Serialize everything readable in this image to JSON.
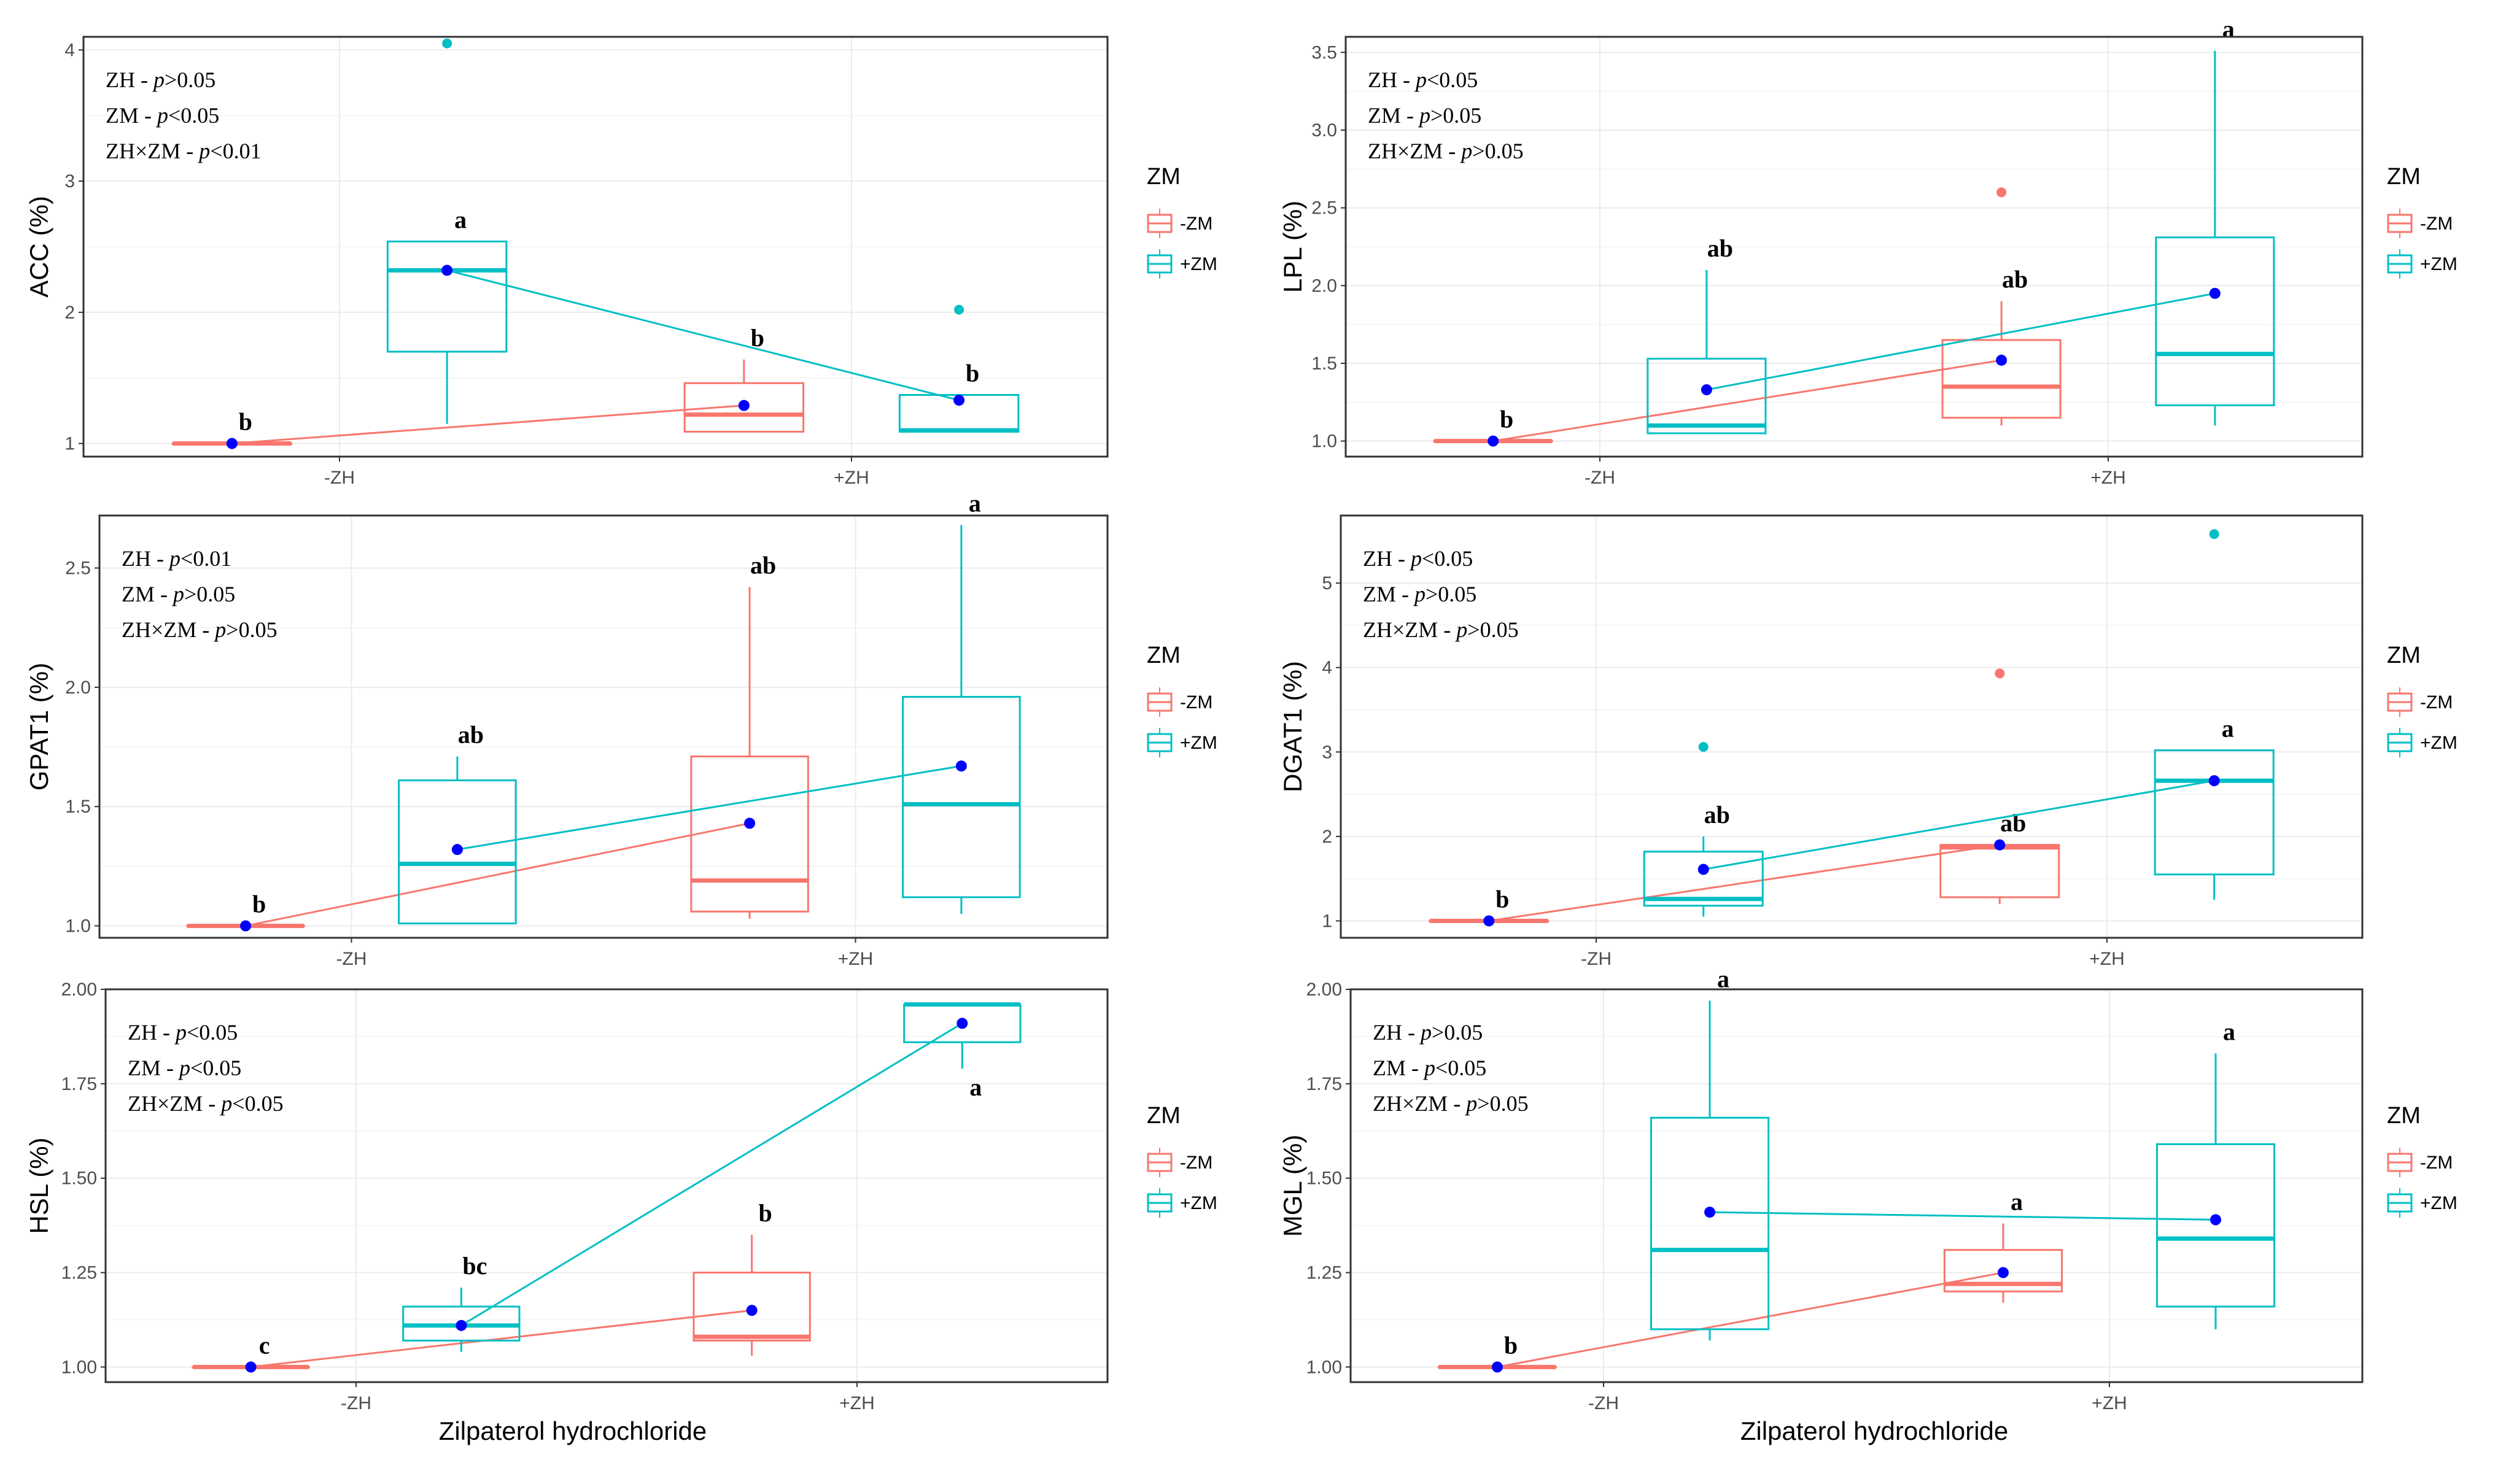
{
  "colors": {
    "minus_zm": "#F8766D",
    "plus_zm": "#00BFC4",
    "mean_point": "#0000FF",
    "panel_border": "#333333"
  },
  "x_axis_title": "Zilpaterol hydrochloride",
  "legend": {
    "title": "ZM",
    "items": [
      "-ZM",
      "+ZM"
    ]
  },
  "chart_data": [
    {
      "type": "box",
      "ylabel": "ACC (%)",
      "categories": [
        "-ZH",
        "+ZH"
      ],
      "ylim": [
        0.9,
        4.1
      ],
      "yticks": [
        1,
        2,
        3,
        4
      ],
      "ytick_labels": [
        "1",
        "2",
        "3",
        "4"
      ],
      "stats_text": [
        {
          "prefix": "ZH - ",
          "p": "p",
          "suffix": ">0.05"
        },
        {
          "prefix": "ZM - ",
          "p": "p",
          "suffix": "<0.05"
        },
        {
          "prefix": "ZH×ZM - ",
          "p": "p",
          "suffix": "<0.01"
        }
      ],
      "series": [
        {
          "name": "-ZM",
          "boxes": [
            {
              "category": "-ZH",
              "q1": 1.0,
              "median": 1.0,
              "q3": 1.0,
              "whisker_low": 1.0,
              "whisker_high": 1.0,
              "mean": 1.0,
              "outliers": [],
              "letter": "b"
            },
            {
              "category": "+ZH",
              "q1": 1.09,
              "median": 1.22,
              "q3": 1.46,
              "whisker_low": 1.09,
              "whisker_high": 1.64,
              "mean": 1.29,
              "outliers": [],
              "letter": "b"
            }
          ]
        },
        {
          "name": "+ZM",
          "boxes": [
            {
              "category": "-ZH",
              "q1": 1.7,
              "median": 2.32,
              "q3": 2.54,
              "whisker_low": 1.15,
              "whisker_high": 2.54,
              "mean": 2.32,
              "outliers": [
                4.05
              ],
              "letter": "a"
            },
            {
              "category": "+ZH",
              "q1": 1.09,
              "median": 1.1,
              "q3": 1.37,
              "whisker_low": 1.09,
              "whisker_high": 1.37,
              "mean": 1.33,
              "outliers": [
                2.02
              ],
              "letter": "b"
            }
          ]
        }
      ]
    },
    {
      "type": "box",
      "ylabel": "LPL (%)",
      "categories": [
        "-ZH",
        "+ZH"
      ],
      "ylim": [
        0.9,
        3.6
      ],
      "yticks": [
        1.0,
        1.5,
        2.0,
        2.5,
        3.0,
        3.5
      ],
      "ytick_labels": [
        "1.0",
        "1.5",
        "2.0",
        "2.5",
        "3.0",
        "3.5"
      ],
      "stats_text": [
        {
          "prefix": "ZH - ",
          "p": "p",
          "suffix": "<0.05"
        },
        {
          "prefix": "ZM - ",
          "p": "p",
          "suffix": ">0.05"
        },
        {
          "prefix": "ZH×ZM - ",
          "p": "p",
          "suffix": ">0.05"
        }
      ],
      "series": [
        {
          "name": "-ZM",
          "boxes": [
            {
              "category": "-ZH",
              "q1": 1.0,
              "median": 1.0,
              "q3": 1.0,
              "whisker_low": 1.0,
              "whisker_high": 1.0,
              "mean": 1.0,
              "outliers": [],
              "letter": "b"
            },
            {
              "category": "+ZH",
              "q1": 1.15,
              "median": 1.35,
              "q3": 1.65,
              "whisker_low": 1.1,
              "whisker_high": 1.9,
              "mean": 1.52,
              "outliers": [
                2.6
              ],
              "letter": "ab"
            }
          ]
        },
        {
          "name": "+ZM",
          "boxes": [
            {
              "category": "-ZH",
              "q1": 1.05,
              "median": 1.1,
              "q3": 1.53,
              "whisker_low": 1.05,
              "whisker_high": 2.1,
              "mean": 1.33,
              "outliers": [],
              "letter": "ab"
            },
            {
              "category": "+ZH",
              "q1": 1.23,
              "median": 1.56,
              "q3": 2.31,
              "whisker_low": 1.1,
              "whisker_high": 3.51,
              "mean": 1.95,
              "outliers": [],
              "letter": "a"
            }
          ]
        }
      ]
    },
    {
      "type": "box",
      "ylabel": "GPAT1 (%)",
      "categories": [
        "-ZH",
        "+ZH"
      ],
      "ylim": [
        0.95,
        2.72
      ],
      "yticks": [
        1.0,
        1.5,
        2.0,
        2.5
      ],
      "ytick_labels": [
        "1.0",
        "1.5",
        "2.0",
        "2.5"
      ],
      "stats_text": [
        {
          "prefix": "ZH - ",
          "p": "p",
          "suffix": "<0.01"
        },
        {
          "prefix": "ZM - ",
          "p": "p",
          "suffix": ">0.05"
        },
        {
          "prefix": "ZH×ZM - ",
          "p": "p",
          "suffix": ">0.05"
        }
      ],
      "series": [
        {
          "name": "-ZM",
          "boxes": [
            {
              "category": "-ZH",
              "q1": 1.0,
              "median": 1.0,
              "q3": 1.0,
              "whisker_low": 1.0,
              "whisker_high": 1.0,
              "mean": 1.0,
              "outliers": [],
              "letter": "b"
            },
            {
              "category": "+ZH",
              "q1": 1.06,
              "median": 1.19,
              "q3": 1.71,
              "whisker_low": 1.03,
              "whisker_high": 2.42,
              "mean": 1.43,
              "outliers": [],
              "letter": "ab"
            }
          ]
        },
        {
          "name": "+ZM",
          "boxes": [
            {
              "category": "-ZH",
              "q1": 1.01,
              "median": 1.26,
              "q3": 1.61,
              "whisker_low": 1.01,
              "whisker_high": 1.71,
              "mean": 1.32,
              "outliers": [],
              "letter": "ab"
            },
            {
              "category": "+ZH",
              "q1": 1.12,
              "median": 1.51,
              "q3": 1.96,
              "whisker_low": 1.05,
              "whisker_high": 2.68,
              "mean": 1.67,
              "outliers": [],
              "letter": "a"
            }
          ]
        }
      ]
    },
    {
      "type": "box",
      "ylabel": "DGAT1 (%)",
      "categories": [
        "-ZH",
        "+ZH"
      ],
      "ylim": [
        0.8,
        5.8
      ],
      "yticks": [
        1,
        2,
        3,
        4,
        5
      ],
      "ytick_labels": [
        "1",
        "2",
        "3",
        "4",
        "5"
      ],
      "stats_text": [
        {
          "prefix": "ZH - ",
          "p": "p",
          "suffix": "<0.05"
        },
        {
          "prefix": "ZM - ",
          "p": "p",
          "suffix": ">0.05"
        },
        {
          "prefix": "ZH×ZM - ",
          "p": "p",
          "suffix": ">0.05"
        }
      ],
      "series": [
        {
          "name": "-ZM",
          "boxes": [
            {
              "category": "-ZH",
              "q1": 1.0,
              "median": 1.0,
              "q3": 1.0,
              "whisker_low": 1.0,
              "whisker_high": 1.0,
              "mean": 1.0,
              "outliers": [],
              "letter": "b"
            },
            {
              "category": "+ZH",
              "q1": 1.28,
              "median": 1.87,
              "q3": 1.9,
              "whisker_low": 1.2,
              "whisker_high": 1.9,
              "mean": 1.9,
              "outliers": [
                3.93
              ],
              "letter": "ab"
            }
          ]
        },
        {
          "name": "+ZM",
          "boxes": [
            {
              "category": "-ZH",
              "q1": 1.18,
              "median": 1.26,
              "q3": 1.82,
              "whisker_low": 1.05,
              "whisker_high": 2.0,
              "mean": 1.61,
              "outliers": [
                3.06
              ],
              "letter": "ab"
            },
            {
              "category": "+ZH",
              "q1": 1.55,
              "median": 2.66,
              "q3": 3.02,
              "whisker_low": 1.25,
              "whisker_high": 3.02,
              "mean": 2.66,
              "outliers": [
                5.58
              ],
              "letter": "a"
            }
          ]
        }
      ]
    },
    {
      "type": "box",
      "ylabel": "HSL (%)",
      "categories": [
        "-ZH",
        "+ZH"
      ],
      "ylim": [
        0.96,
        2.0
      ],
      "yticks": [
        1.0,
        1.25,
        1.5,
        1.75,
        2.0
      ],
      "ytick_labels": [
        "1.00",
        "1.25",
        "1.50",
        "1.75",
        "2.00"
      ],
      "stats_text": [
        {
          "prefix": "ZH - ",
          "p": "p",
          "suffix": "<0.05"
        },
        {
          "prefix": "ZM - ",
          "p": "p",
          "suffix": "<0.05"
        },
        {
          "prefix": "ZH×ZM - ",
          "p": "p",
          "suffix": "<0.05"
        }
      ],
      "series": [
        {
          "name": "-ZM",
          "boxes": [
            {
              "category": "-ZH",
              "q1": 1.0,
              "median": 1.0,
              "q3": 1.0,
              "whisker_low": 1.0,
              "whisker_high": 1.0,
              "mean": 1.0,
              "outliers": [],
              "letter": "c"
            },
            {
              "category": "+ZH",
              "q1": 1.07,
              "median": 1.08,
              "q3": 1.25,
              "whisker_low": 1.03,
              "whisker_high": 1.35,
              "mean": 1.15,
              "outliers": [],
              "letter": "b"
            }
          ]
        },
        {
          "name": "+ZM",
          "boxes": [
            {
              "category": "-ZH",
              "q1": 1.07,
              "median": 1.11,
              "q3": 1.16,
              "whisker_low": 1.04,
              "whisker_high": 1.21,
              "mean": 1.11,
              "outliers": [],
              "letter": "bc"
            },
            {
              "category": "+ZH",
              "q1": 1.86,
              "median": 1.96,
              "q3": 1.96,
              "whisker_low": 1.79,
              "whisker_high": 1.96,
              "mean": 1.91,
              "outliers": [],
              "letter": "a"
            }
          ]
        }
      ]
    },
    {
      "type": "box",
      "ylabel": "MGL (%)",
      "categories": [
        "-ZH",
        "+ZH"
      ],
      "ylim": [
        0.96,
        2.0
      ],
      "yticks": [
        1.0,
        1.25,
        1.5,
        1.75,
        2.0
      ],
      "ytick_labels": [
        "1.00",
        "1.25",
        "1.50",
        "1.75",
        "2.00"
      ],
      "stats_text": [
        {
          "prefix": "ZH - ",
          "p": "p",
          "suffix": ">0.05"
        },
        {
          "prefix": "ZM - ",
          "p": "p",
          "suffix": "<0.05"
        },
        {
          "prefix": "ZH×ZM - ",
          "p": "p",
          "suffix": ">0.05"
        }
      ],
      "series": [
        {
          "name": "-ZM",
          "boxes": [
            {
              "category": "-ZH",
              "q1": 1.0,
              "median": 1.0,
              "q3": 1.0,
              "whisker_low": 1.0,
              "whisker_high": 1.0,
              "mean": 1.0,
              "outliers": [],
              "letter": "b"
            },
            {
              "category": "+ZH",
              "q1": 1.2,
              "median": 1.22,
              "q3": 1.31,
              "whisker_low": 1.17,
              "whisker_high": 1.38,
              "mean": 1.25,
              "outliers": [],
              "letter": "a"
            }
          ]
        },
        {
          "name": "+ZM",
          "boxes": [
            {
              "category": "-ZH",
              "q1": 1.1,
              "median": 1.31,
              "q3": 1.66,
              "whisker_low": 1.07,
              "whisker_high": 1.97,
              "mean": 1.41,
              "outliers": [],
              "letter": "a"
            },
            {
              "category": "+ZH",
              "q1": 1.16,
              "median": 1.34,
              "q3": 1.59,
              "whisker_low": 1.1,
              "whisker_high": 1.83,
              "mean": 1.39,
              "outliers": [],
              "letter": "a"
            }
          ]
        }
      ]
    }
  ]
}
